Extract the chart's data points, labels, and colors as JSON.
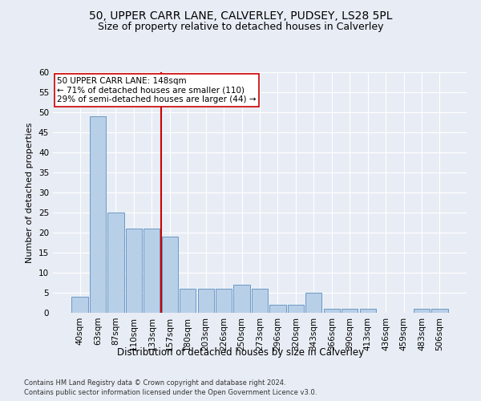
{
  "title1": "50, UPPER CARR LANE, CALVERLEY, PUDSEY, LS28 5PL",
  "title2": "Size of property relative to detached houses in Calverley",
  "xlabel": "Distribution of detached houses by size in Calverley",
  "ylabel": "Number of detached properties",
  "bar_labels": [
    "40sqm",
    "63sqm",
    "87sqm",
    "110sqm",
    "133sqm",
    "157sqm",
    "180sqm",
    "203sqm",
    "226sqm",
    "250sqm",
    "273sqm",
    "296sqm",
    "320sqm",
    "343sqm",
    "366sqm",
    "390sqm",
    "413sqm",
    "436sqm",
    "459sqm",
    "483sqm",
    "506sqm"
  ],
  "bar_values": [
    4,
    49,
    25,
    21,
    21,
    19,
    6,
    6,
    6,
    7,
    6,
    2,
    2,
    5,
    1,
    1,
    1,
    0,
    0,
    1,
    1
  ],
  "bar_color": "#b8cfe8",
  "bar_edge_color": "#5a8fbf",
  "vline_color": "#cc0000",
  "annotation_text": "50 UPPER CARR LANE: 148sqm\n← 71% of detached houses are smaller (110)\n29% of semi-detached houses are larger (44) →",
  "annotation_box_color": "white",
  "annotation_box_edge_color": "#cc0000",
  "ylim": [
    0,
    60
  ],
  "yticks": [
    0,
    5,
    10,
    15,
    20,
    25,
    30,
    35,
    40,
    45,
    50,
    55,
    60
  ],
  "footnote1": "Contains HM Land Registry data © Crown copyright and database right 2024.",
  "footnote2": "Contains public sector information licensed under the Open Government Licence v3.0.",
  "background_color": "#e8edf5",
  "plot_background_color": "#e8edf5",
  "grid_color": "white",
  "title1_fontsize": 10,
  "title2_fontsize": 9,
  "xlabel_fontsize": 8.5,
  "ylabel_fontsize": 8,
  "tick_fontsize": 7.5,
  "annot_fontsize": 7.5,
  "footnote_fontsize": 6
}
